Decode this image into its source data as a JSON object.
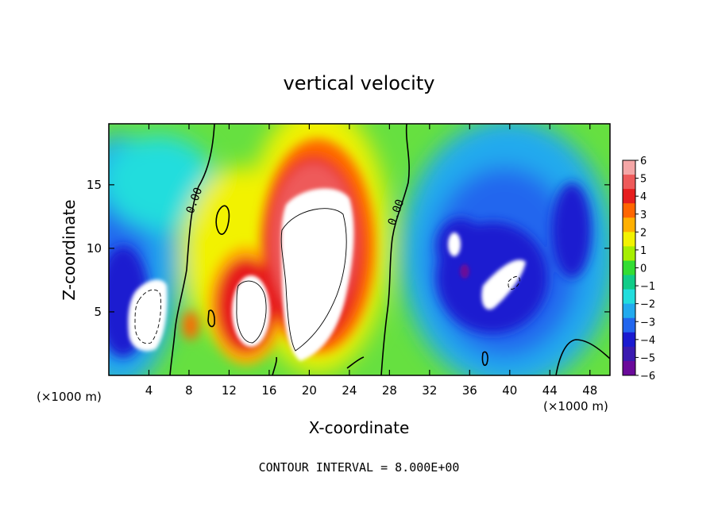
{
  "chart_data": {
    "type": "heatmap",
    "title": "vertical velocity",
    "xlabel": "X-coordinate",
    "ylabel": "Z-coordinate",
    "x_unit_left": "(×1000 m)",
    "x_unit_right": "(×1000 m)",
    "footer": "CONTOUR INTERVAL = 8.000E+00",
    "xlim": [
      0,
      50
    ],
    "ylim": [
      0,
      19.8
    ],
    "x_ticks": [
      4,
      8,
      12,
      16,
      20,
      24,
      28,
      32,
      36,
      40,
      44,
      48
    ],
    "x_tick_labels": [
      "4",
      "8",
      "12",
      "16",
      "20",
      "24",
      "28",
      "32",
      "36",
      "40",
      "44",
      "48"
    ],
    "y_ticks": [
      5,
      10,
      15
    ],
    "y_tick_labels": [
      "5",
      "10",
      "15"
    ],
    "contour_labels": [
      "0.00",
      "0.00"
    ],
    "colorbar": {
      "ticks": [
        6,
        5,
        4,
        3,
        2,
        1,
        0,
        -1,
        -2,
        -3,
        -4,
        -5,
        -6
      ],
      "tick_labels": [
        "6",
        "5",
        "4",
        "3",
        "2",
        "1",
        "0",
        "−1",
        "−2",
        "−3",
        "−4",
        "−5",
        "−6"
      ],
      "colors": [
        "#f4a6a6",
        "#ee5a5a",
        "#e61e1e",
        "#ff6600",
        "#ffb000",
        "#f2f200",
        "#a6ee00",
        "#33dd33",
        "#11cc88",
        "#22dddd",
        "#22aaee",
        "#2266ee",
        "#1a1ad0",
        "#3a1ab0",
        "#6a0a9a"
      ]
    }
  }
}
